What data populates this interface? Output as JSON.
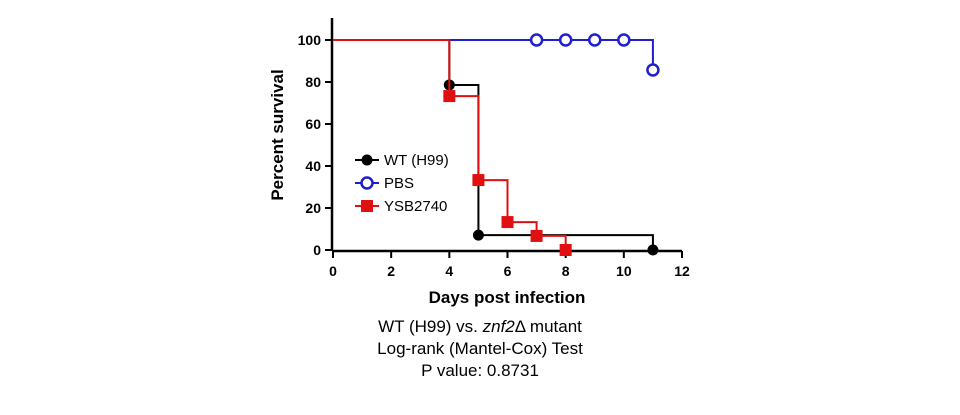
{
  "chart_data": {
    "type": "line",
    "subtype": "kaplan-meier step",
    "xlabel": "Days post infection",
    "ylabel": "Percent survival",
    "xlim": [
      0,
      12
    ],
    "ylim": [
      0,
      100
    ],
    "xticks": [
      0,
      2,
      4,
      6,
      8,
      10,
      12
    ],
    "yticks": [
      0,
      20,
      40,
      60,
      80,
      100
    ],
    "grid": false,
    "legend_placement": "center-left",
    "series": [
      {
        "name": "WT (H99)",
        "color": "#000000",
        "marker": "filled-circle",
        "steps": [
          [
            0,
            100
          ],
          [
            4,
            100
          ],
          [
            4,
            78.6
          ],
          [
            5,
            78.6
          ],
          [
            5,
            7.1
          ],
          [
            11,
            7.1
          ],
          [
            11,
            0
          ]
        ],
        "markers": [
          [
            4,
            78.6
          ],
          [
            5,
            7.1
          ],
          [
            11,
            0
          ]
        ]
      },
      {
        "name": "PBS",
        "color": "#1f1fd0",
        "marker": "open-circle",
        "steps": [
          [
            0,
            100
          ],
          [
            11,
            100
          ],
          [
            11,
            85.7
          ]
        ],
        "markers": [
          [
            7,
            100
          ],
          [
            8,
            100
          ],
          [
            9,
            100
          ],
          [
            10,
            100
          ],
          [
            11,
            85.7
          ]
        ]
      },
      {
        "name": "YSB2740",
        "color": "#e01010",
        "marker": "filled-square",
        "steps": [
          [
            0,
            100
          ],
          [
            4,
            100
          ],
          [
            4,
            73.3
          ],
          [
            5,
            73.3
          ],
          [
            5,
            33.3
          ],
          [
            6,
            33.3
          ],
          [
            6,
            13.3
          ],
          [
            7,
            13.3
          ],
          [
            7,
            6.7
          ],
          [
            8,
            6.7
          ],
          [
            8,
            0
          ]
        ],
        "markers": [
          [
            4,
            73.3
          ],
          [
            5,
            33.3
          ],
          [
            6,
            13.3
          ],
          [
            7,
            6.7
          ],
          [
            8,
            0
          ]
        ]
      }
    ]
  },
  "caption": {
    "line1_prefix": "WT (H99) vs. ",
    "line1_gene": "znf2",
    "line1_suffix": "Δ mutant",
    "line2": "Log-rank (Mantel-Cox) Test",
    "line3": "P value: 0.8731"
  }
}
